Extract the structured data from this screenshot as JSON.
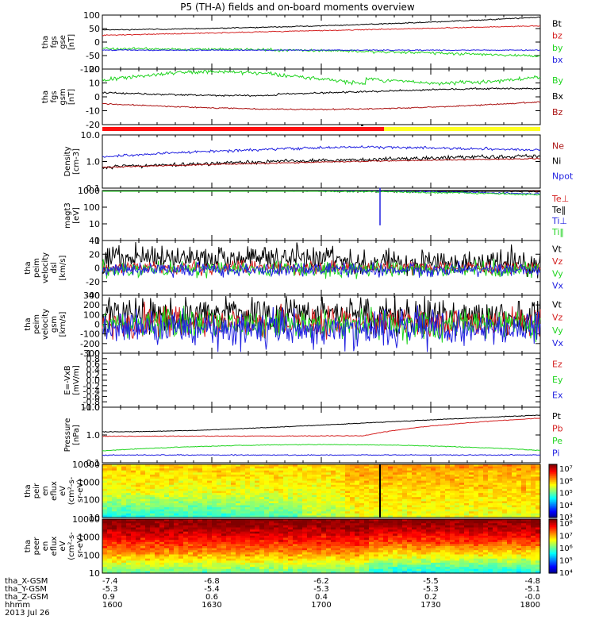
{
  "title": "P5 (TH-A) fields and on-board moments overview",
  "colors": {
    "black": "#000000",
    "red": "#d42020",
    "green": "#20d420",
    "blue": "#2020e0",
    "darkred": "#aa1010",
    "yellow": "#f0f020",
    "mode_red": "#ff1010",
    "mode_yellow": "#ffff20"
  },
  "panels": [
    {
      "id": "fgs_gse",
      "ylabel": [
        "tha",
        "fgs",
        "gse",
        "[nT]"
      ],
      "ticks": [
        "100",
        "50",
        "0",
        "-50",
        "-100"
      ],
      "legend": [
        {
          "label": "Bt",
          "color": "black"
        },
        {
          "label": "bz",
          "color": "red"
        },
        {
          "label": "by",
          "color": "green"
        },
        {
          "label": "bx",
          "color": "blue"
        }
      ]
    },
    {
      "id": "fgs_gsm",
      "ylabel": [
        "tha",
        "fgs",
        "gsm",
        "[nT]"
      ],
      "ticks": [
        "20",
        "10",
        "0",
        "-10",
        "-20"
      ],
      "legend": [
        {
          "label": "By",
          "color": "green"
        },
        {
          "label": "Bx",
          "color": "black"
        },
        {
          "label": "Bz",
          "color": "darkred"
        }
      ]
    },
    {
      "id": "density",
      "ylabel": [
        "Density",
        "[cm-3]"
      ],
      "ticks": [
        "10.0",
        "1.0",
        "0.1"
      ],
      "legend": [
        {
          "label": "Ne",
          "color": "darkred"
        },
        {
          "label": "Ni",
          "color": "black"
        },
        {
          "label": "Npot",
          "color": "blue"
        }
      ]
    },
    {
      "id": "temperature",
      "ylabel": [
        "magt3",
        "[eV]"
      ],
      "ticks": [
        "1000",
        "100",
        "10",
        "1"
      ],
      "legend": [
        {
          "label": "Te⊥",
          "color": "red"
        },
        {
          "label": "Te‖",
          "color": "black"
        },
        {
          "label": "Ti⊥",
          "color": "blue"
        },
        {
          "label": "Ti‖",
          "color": "green"
        }
      ]
    },
    {
      "id": "velocity_esa",
      "ylabel": [
        "tha",
        "peim",
        "velocity",
        "dsl",
        "[km/s]"
      ],
      "ticks": [
        "40",
        "20",
        "0",
        "-20",
        "-40"
      ],
      "legend": [
        {
          "label": "Vt",
          "color": "black"
        },
        {
          "label": "Vz",
          "color": "red"
        },
        {
          "label": "Vy",
          "color": "green"
        },
        {
          "label": "Vx",
          "color": "blue"
        }
      ]
    },
    {
      "id": "velocity_gsm",
      "ylabel": [
        "tha",
        "peim",
        "velocity",
        "gsm",
        "[km/s]"
      ],
      "ticks": [
        "300",
        "200",
        "100",
        "0",
        "-100",
        "-200",
        "-300"
      ],
      "legend": [
        {
          "label": "Vt",
          "color": "black"
        },
        {
          "label": "Vz",
          "color": "red"
        },
        {
          "label": "Vy",
          "color": "green"
        },
        {
          "label": "Vx",
          "color": "blue"
        }
      ]
    },
    {
      "id": "efield",
      "ylabel": [
        "E=-VxB",
        "[mV/m]"
      ],
      "ticks": [
        "1.0",
        "0.8",
        "0.6",
        "0.4",
        "0.2",
        "0.0",
        "-0.2",
        "-0.4",
        "-0.6",
        "-0.8",
        "-1.0"
      ],
      "legend": [
        {
          "label": "Ez",
          "color": "red"
        },
        {
          "label": "Ey",
          "color": "green"
        },
        {
          "label": "Ex",
          "color": "blue"
        }
      ]
    },
    {
      "id": "pressure",
      "ylabel": [
        "Pressure",
        "[nPa]"
      ],
      "ticks": [
        "10.0",
        "1.0",
        "0.1"
      ],
      "legend": [
        {
          "label": "Pt",
          "color": "black"
        },
        {
          "label": "Pb",
          "color": "red"
        },
        {
          "label": "Pe",
          "color": "green"
        },
        {
          "label": "Pi",
          "color": "blue"
        }
      ]
    },
    {
      "id": "ion_spec",
      "ylabel": [
        "tha",
        "peir",
        "en",
        "eflux",
        "eV",
        "(cm²-s-",
        "sr-eV)"
      ],
      "ticks": [
        "10000",
        "1000",
        "100",
        "10"
      ],
      "colorbar": [
        "10⁷",
        "10⁶",
        "10⁵",
        "10⁴",
        "10³"
      ]
    },
    {
      "id": "elec_spec",
      "ylabel": [
        "tha",
        "peer",
        "en",
        "eflux",
        "eV",
        "(cm²-s-",
        "sr-eV)"
      ],
      "ticks": [
        "10000",
        "1000",
        "100",
        "10"
      ],
      "colorbar": [
        "10⁸",
        "10⁷",
        "10⁶",
        "10⁵",
        "10⁴"
      ]
    }
  ],
  "ephemeris": {
    "labels": [
      "tha_X-GSM",
      "tha_Y-GSM",
      "tha_Z-GSM",
      "hhmm",
      "2013 Jul 26"
    ],
    "columns": [
      [
        "-7.4",
        "-5.3",
        "0.9",
        "1600"
      ],
      [
        "-6.8",
        "-5.4",
        "0.6",
        "1630"
      ],
      [
        "-6.2",
        "-5.3",
        "0.4",
        "1700"
      ],
      [
        "-5.5",
        "-5.3",
        "0.2",
        "1730"
      ],
      [
        "-4.8",
        "-5.1",
        "-0.0",
        "1800"
      ]
    ]
  },
  "chart_data": {
    "type": "line",
    "x": [
      "1600",
      "1630",
      "1700",
      "1730",
      "1800"
    ],
    "xlabel": "hhmm",
    "series": [
      {
        "name": "Bt",
        "values": [
          45,
          48,
          60,
          75,
          92
        ]
      },
      {
        "name": "bz",
        "values": [
          25,
          28,
          38,
          48,
          60
        ]
      },
      {
        "name": "by",
        "values": [
          -25,
          -28,
          -30,
          -38,
          -50
        ]
      },
      {
        "name": "bx",
        "values": [
          -30,
          -30,
          -30,
          -30,
          -30
        ]
      },
      {
        "name": "Ni",
        "values": [
          0.6,
          0.7,
          0.9,
          1.2,
          1.6
        ]
      },
      {
        "name": "Npot",
        "values": [
          1.5,
          2.2,
          3.5,
          3.0,
          2.6
        ]
      },
      {
        "name": "Pt",
        "values": [
          1.3,
          1.8,
          2.6,
          3.4,
          5.2
        ]
      },
      {
        "name": "Pb",
        "values": [
          0.9,
          1.0,
          0.9,
          2.0,
          4.0
        ]
      },
      {
        "name": "Pe",
        "values": [
          0.27,
          0.3,
          0.45,
          0.4,
          0.35
        ]
      },
      {
        "name": "Pi",
        "values": [
          0.18,
          0.19,
          0.2,
          0.19,
          0.17
        ]
      }
    ]
  }
}
